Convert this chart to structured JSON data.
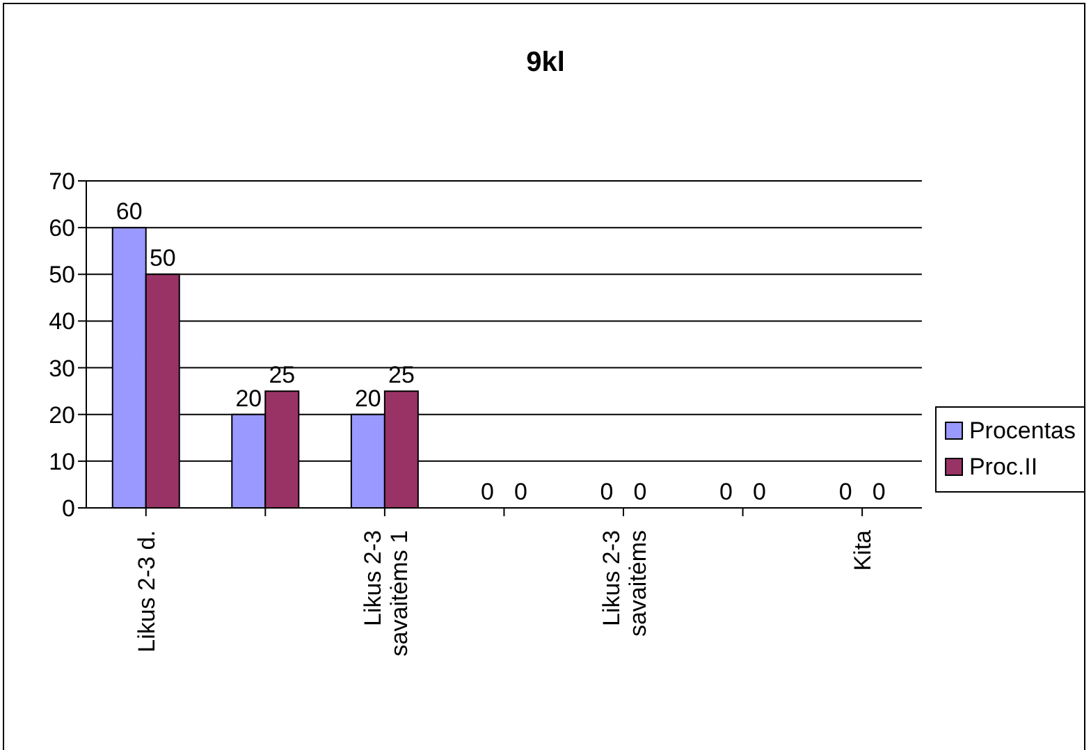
{
  "chart_data": {
    "type": "bar",
    "title": "9kl",
    "categories": [
      "Likus 2-3 d.",
      null,
      "Likus 2-3 savaitėms 1",
      null,
      "Likus 2-3 savaitėms",
      null,
      "Kita"
    ],
    "series": [
      {
        "name": "Procentas",
        "color": "#9999ff",
        "values": [
          60,
          20,
          20,
          0,
          0,
          0,
          0
        ]
      },
      {
        "name": "Proc.II",
        "color": "#993366",
        "values": [
          50,
          25,
          25,
          0,
          0,
          0,
          0
        ]
      }
    ],
    "ylim": [
      0,
      70
    ],
    "yticks": [
      0,
      10,
      20,
      30,
      40,
      50,
      60,
      70
    ],
    "grid": "y",
    "legend": "right",
    "data_labels": true
  }
}
